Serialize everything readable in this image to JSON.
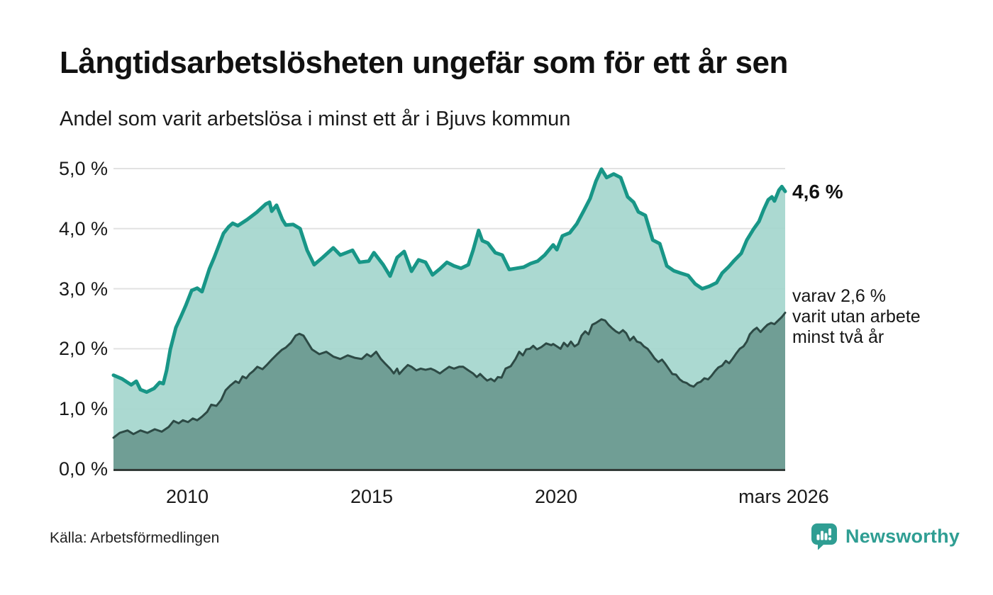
{
  "title": "Långtidsarbetslösheten ungefär som för ett år sen",
  "subtitle": "Andel som varit arbetslösa i minst ett år i Bjuvs kommun",
  "source": "Källa: Arbetsförmedlingen",
  "branding": {
    "logo_text": "Newsworthy",
    "logo_icon": "bar-chart-speech-bubble-icon",
    "brand_color": "#2f9e93"
  },
  "annotations": {
    "latest_total_label": "4,6 %",
    "latest_total_value": 4.6,
    "two_year_label_lines": [
      "varav 2,6 %",
      "varit utan arbete",
      "minst två år"
    ],
    "latest_two_year_value": 2.6
  },
  "colors": {
    "background": "#ffffff",
    "gridline": "#e2e2e2",
    "axis_line": "#333b38",
    "text": "#1a1a1a",
    "total_line": "#189687",
    "total_fill": "#a5d6ce",
    "two_year_line": "#2d4a45",
    "two_year_fill": "#6d9c93"
  },
  "chart_data": {
    "type": "area",
    "variant": "overlapping-areas",
    "title": "Långtidsarbetslösheten ungefär som för ett år sen",
    "subtitle": "Andel som varit arbetslösa i minst ett år i Bjuvs kommun",
    "unit": "%",
    "grid": true,
    "x_axis": {
      "range": [
        2008.0,
        2026.21
      ],
      "ticks": [
        {
          "label": "2010",
          "t": 2010
        },
        {
          "label": "2015",
          "t": 2015
        },
        {
          "label": "2020",
          "t": 2020
        },
        {
          "label": "mars 2026",
          "t": 2026.17
        }
      ]
    },
    "y_axis": {
      "range": [
        0,
        5
      ],
      "grid_values": [
        0,
        1,
        2,
        3,
        4,
        5
      ],
      "ticks": [
        {
          "label": "5,0 %",
          "v": 5
        },
        {
          "label": "4,0 %",
          "v": 4
        },
        {
          "label": "3,0 %",
          "v": 3
        },
        {
          "label": "2,0 %",
          "v": 2
        },
        {
          "label": "1,0 %",
          "v": 1
        },
        {
          "label": "0,0 %",
          "v": 0
        }
      ]
    },
    "series": [
      {
        "name": "Andel arbetslösa minst ett år",
        "latest_label": "4,6 %",
        "line_color": "#189687",
        "fill_color": "#a5d6ce",
        "fill_opacity": 0.93,
        "line_width": 5,
        "points": [
          [
            2008.0,
            1.56
          ],
          [
            2008.23,
            1.5
          ],
          [
            2008.48,
            1.4
          ],
          [
            2008.62,
            1.46
          ],
          [
            2008.73,
            1.32
          ],
          [
            2008.9,
            1.28
          ],
          [
            2009.1,
            1.34
          ],
          [
            2009.25,
            1.44
          ],
          [
            2009.35,
            1.42
          ],
          [
            2009.44,
            1.64
          ],
          [
            2009.54,
            1.99
          ],
          [
            2009.69,
            2.35
          ],
          [
            2009.83,
            2.54
          ],
          [
            2009.96,
            2.72
          ],
          [
            2010.12,
            2.97
          ],
          [
            2010.27,
            3.01
          ],
          [
            2010.4,
            2.95
          ],
          [
            2010.6,
            3.33
          ],
          [
            2010.73,
            3.52
          ],
          [
            2010.98,
            3.92
          ],
          [
            2011.12,
            4.03
          ],
          [
            2011.23,
            4.09
          ],
          [
            2011.37,
            4.05
          ],
          [
            2011.62,
            4.15
          ],
          [
            2011.88,
            4.27
          ],
          [
            2012.13,
            4.41
          ],
          [
            2012.23,
            4.44
          ],
          [
            2012.29,
            4.29
          ],
          [
            2012.42,
            4.39
          ],
          [
            2012.58,
            4.15
          ],
          [
            2012.67,
            4.06
          ],
          [
            2012.87,
            4.07
          ],
          [
            2013.06,
            4.0
          ],
          [
            2013.25,
            3.64
          ],
          [
            2013.44,
            3.4
          ],
          [
            2013.67,
            3.52
          ],
          [
            2013.96,
            3.68
          ],
          [
            2014.15,
            3.56
          ],
          [
            2014.48,
            3.64
          ],
          [
            2014.67,
            3.44
          ],
          [
            2014.92,
            3.46
          ],
          [
            2015.06,
            3.6
          ],
          [
            2015.31,
            3.4
          ],
          [
            2015.5,
            3.21
          ],
          [
            2015.69,
            3.52
          ],
          [
            2015.88,
            3.62
          ],
          [
            2016.08,
            3.29
          ],
          [
            2016.27,
            3.48
          ],
          [
            2016.46,
            3.44
          ],
          [
            2016.65,
            3.23
          ],
          [
            2016.85,
            3.33
          ],
          [
            2017.04,
            3.44
          ],
          [
            2017.23,
            3.38
          ],
          [
            2017.42,
            3.34
          ],
          [
            2017.62,
            3.4
          ],
          [
            2017.75,
            3.64
          ],
          [
            2017.9,
            3.97
          ],
          [
            2018.0,
            3.8
          ],
          [
            2018.15,
            3.76
          ],
          [
            2018.35,
            3.6
          ],
          [
            2018.54,
            3.56
          ],
          [
            2018.73,
            3.32
          ],
          [
            2018.92,
            3.34
          ],
          [
            2019.12,
            3.36
          ],
          [
            2019.31,
            3.42
          ],
          [
            2019.5,
            3.46
          ],
          [
            2019.69,
            3.56
          ],
          [
            2019.92,
            3.73
          ],
          [
            2020.02,
            3.65
          ],
          [
            2020.17,
            3.88
          ],
          [
            2020.37,
            3.93
          ],
          [
            2020.56,
            4.08
          ],
          [
            2020.75,
            4.3
          ],
          [
            2020.92,
            4.5
          ],
          [
            2021.08,
            4.79
          ],
          [
            2021.23,
            4.99
          ],
          [
            2021.37,
            4.85
          ],
          [
            2021.56,
            4.91
          ],
          [
            2021.75,
            4.85
          ],
          [
            2021.94,
            4.53
          ],
          [
            2022.1,
            4.44
          ],
          [
            2022.23,
            4.28
          ],
          [
            2022.42,
            4.22
          ],
          [
            2022.62,
            3.81
          ],
          [
            2022.81,
            3.75
          ],
          [
            2023.0,
            3.38
          ],
          [
            2023.19,
            3.3
          ],
          [
            2023.38,
            3.26
          ],
          [
            2023.58,
            3.22
          ],
          [
            2023.77,
            3.08
          ],
          [
            2023.96,
            3.0
          ],
          [
            2024.15,
            3.04
          ],
          [
            2024.35,
            3.1
          ],
          [
            2024.5,
            3.26
          ],
          [
            2024.67,
            3.36
          ],
          [
            2024.83,
            3.47
          ],
          [
            2025.02,
            3.59
          ],
          [
            2025.17,
            3.81
          ],
          [
            2025.35,
            3.99
          ],
          [
            2025.5,
            4.12
          ],
          [
            2025.63,
            4.32
          ],
          [
            2025.75,
            4.48
          ],
          [
            2025.85,
            4.53
          ],
          [
            2025.92,
            4.46
          ],
          [
            2026.04,
            4.64
          ],
          [
            2026.12,
            4.7
          ],
          [
            2026.21,
            4.62
          ]
        ]
      },
      {
        "name": "Varav utan arbete minst två år",
        "latest_label": "varav 2,6 %",
        "line_color": "#2d4a45",
        "fill_color": "#6d9c93",
        "fill_opacity": 0.97,
        "line_width": 3,
        "points": [
          [
            2008.0,
            0.52
          ],
          [
            2008.17,
            0.6
          ],
          [
            2008.38,
            0.64
          ],
          [
            2008.54,
            0.58
          ],
          [
            2008.73,
            0.64
          ],
          [
            2008.92,
            0.6
          ],
          [
            2009.12,
            0.66
          ],
          [
            2009.31,
            0.62
          ],
          [
            2009.5,
            0.7
          ],
          [
            2009.63,
            0.8
          ],
          [
            2009.77,
            0.76
          ],
          [
            2009.88,
            0.81
          ],
          [
            2010.02,
            0.78
          ],
          [
            2010.15,
            0.84
          ],
          [
            2010.27,
            0.81
          ],
          [
            2010.4,
            0.87
          ],
          [
            2010.54,
            0.95
          ],
          [
            2010.65,
            1.07
          ],
          [
            2010.79,
            1.05
          ],
          [
            2010.92,
            1.15
          ],
          [
            2011.04,
            1.31
          ],
          [
            2011.17,
            1.39
          ],
          [
            2011.31,
            1.46
          ],
          [
            2011.4,
            1.43
          ],
          [
            2011.5,
            1.54
          ],
          [
            2011.6,
            1.51
          ],
          [
            2011.69,
            1.58
          ],
          [
            2011.79,
            1.63
          ],
          [
            2011.9,
            1.7
          ],
          [
            2012.04,
            1.66
          ],
          [
            2012.17,
            1.74
          ],
          [
            2012.29,
            1.82
          ],
          [
            2012.42,
            1.9
          ],
          [
            2012.56,
            1.98
          ],
          [
            2012.67,
            2.02
          ],
          [
            2012.81,
            2.1
          ],
          [
            2012.94,
            2.22
          ],
          [
            2013.04,
            2.25
          ],
          [
            2013.15,
            2.22
          ],
          [
            2013.38,
            1.99
          ],
          [
            2013.58,
            1.91
          ],
          [
            2013.77,
            1.95
          ],
          [
            2013.96,
            1.87
          ],
          [
            2014.15,
            1.83
          ],
          [
            2014.35,
            1.89
          ],
          [
            2014.54,
            1.85
          ],
          [
            2014.73,
            1.83
          ],
          [
            2014.87,
            1.91
          ],
          [
            2014.98,
            1.87
          ],
          [
            2015.12,
            1.95
          ],
          [
            2015.25,
            1.83
          ],
          [
            2015.37,
            1.75
          ],
          [
            2015.5,
            1.67
          ],
          [
            2015.6,
            1.59
          ],
          [
            2015.69,
            1.67
          ],
          [
            2015.75,
            1.58
          ],
          [
            2015.88,
            1.67
          ],
          [
            2015.98,
            1.73
          ],
          [
            2016.08,
            1.7
          ],
          [
            2016.21,
            1.64
          ],
          [
            2016.33,
            1.67
          ],
          [
            2016.46,
            1.65
          ],
          [
            2016.6,
            1.67
          ],
          [
            2016.71,
            1.64
          ],
          [
            2016.85,
            1.59
          ],
          [
            2016.98,
            1.65
          ],
          [
            2017.1,
            1.7
          ],
          [
            2017.23,
            1.67
          ],
          [
            2017.37,
            1.7
          ],
          [
            2017.48,
            1.7
          ],
          [
            2017.62,
            1.64
          ],
          [
            2017.75,
            1.59
          ],
          [
            2017.85,
            1.53
          ],
          [
            2017.94,
            1.58
          ],
          [
            2018.04,
            1.52
          ],
          [
            2018.13,
            1.47
          ],
          [
            2018.23,
            1.5
          ],
          [
            2018.33,
            1.46
          ],
          [
            2018.42,
            1.53
          ],
          [
            2018.52,
            1.52
          ],
          [
            2018.63,
            1.67
          ],
          [
            2018.77,
            1.71
          ],
          [
            2018.9,
            1.83
          ],
          [
            2019.0,
            1.95
          ],
          [
            2019.1,
            1.89
          ],
          [
            2019.19,
            1.99
          ],
          [
            2019.29,
            2.0
          ],
          [
            2019.38,
            2.05
          ],
          [
            2019.48,
            1.99
          ],
          [
            2019.6,
            2.03
          ],
          [
            2019.73,
            2.09
          ],
          [
            2019.87,
            2.06
          ],
          [
            2019.92,
            2.08
          ],
          [
            2020.12,
            2.0
          ],
          [
            2020.21,
            2.1
          ],
          [
            2020.31,
            2.04
          ],
          [
            2020.4,
            2.12
          ],
          [
            2020.5,
            2.04
          ],
          [
            2020.6,
            2.08
          ],
          [
            2020.69,
            2.22
          ],
          [
            2020.79,
            2.29
          ],
          [
            2020.88,
            2.24
          ],
          [
            2020.98,
            2.4
          ],
          [
            2021.08,
            2.43
          ],
          [
            2021.23,
            2.49
          ],
          [
            2021.33,
            2.47
          ],
          [
            2021.42,
            2.4
          ],
          [
            2021.52,
            2.34
          ],
          [
            2021.62,
            2.29
          ],
          [
            2021.71,
            2.26
          ],
          [
            2021.81,
            2.31
          ],
          [
            2021.9,
            2.26
          ],
          [
            2022.0,
            2.14
          ],
          [
            2022.1,
            2.2
          ],
          [
            2022.19,
            2.12
          ],
          [
            2022.29,
            2.1
          ],
          [
            2022.38,
            2.04
          ],
          [
            2022.48,
            2.0
          ],
          [
            2022.58,
            1.92
          ],
          [
            2022.67,
            1.84
          ],
          [
            2022.77,
            1.78
          ],
          [
            2022.87,
            1.82
          ],
          [
            2022.96,
            1.75
          ],
          [
            2023.06,
            1.66
          ],
          [
            2023.15,
            1.58
          ],
          [
            2023.25,
            1.57
          ],
          [
            2023.35,
            1.49
          ],
          [
            2023.44,
            1.45
          ],
          [
            2023.54,
            1.43
          ],
          [
            2023.63,
            1.39
          ],
          [
            2023.73,
            1.37
          ],
          [
            2023.83,
            1.43
          ],
          [
            2023.92,
            1.45
          ],
          [
            2024.02,
            1.51
          ],
          [
            2024.12,
            1.49
          ],
          [
            2024.21,
            1.55
          ],
          [
            2024.31,
            1.63
          ],
          [
            2024.4,
            1.69
          ],
          [
            2024.5,
            1.72
          ],
          [
            2024.6,
            1.8
          ],
          [
            2024.69,
            1.76
          ],
          [
            2024.79,
            1.84
          ],
          [
            2024.88,
            1.92
          ],
          [
            2024.98,
            2.0
          ],
          [
            2025.08,
            2.04
          ],
          [
            2025.17,
            2.12
          ],
          [
            2025.25,
            2.24
          ],
          [
            2025.35,
            2.31
          ],
          [
            2025.44,
            2.35
          ],
          [
            2025.54,
            2.28
          ],
          [
            2025.63,
            2.34
          ],
          [
            2025.73,
            2.4
          ],
          [
            2025.83,
            2.43
          ],
          [
            2025.92,
            2.41
          ],
          [
            2026.02,
            2.47
          ],
          [
            2026.12,
            2.53
          ],
          [
            2026.21,
            2.6
          ]
        ]
      }
    ],
    "legend_position": "right-annotations"
  }
}
